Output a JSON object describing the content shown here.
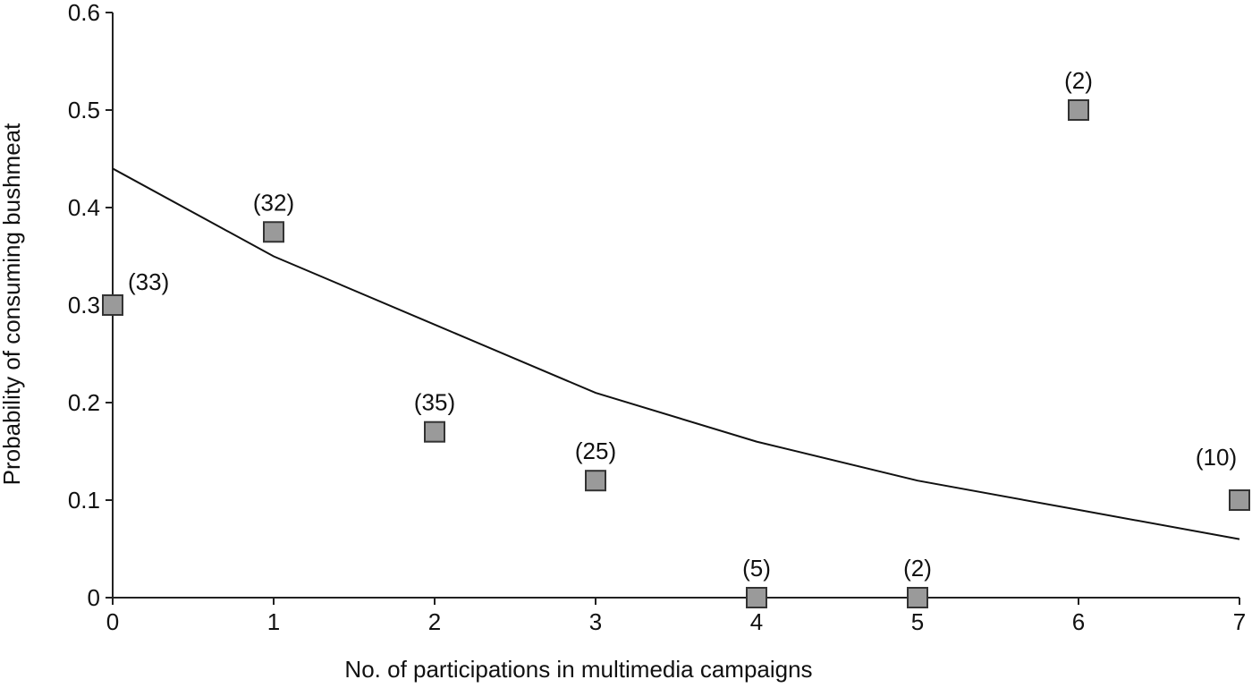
{
  "chart_data": {
    "type": "scatter",
    "title": "",
    "xlabel": "No. of participations in multimedia campaigns",
    "ylabel": "Probability of consuming bushmeat",
    "xlim": [
      0,
      7
    ],
    "ylim": [
      0,
      0.6
    ],
    "x_ticks": [
      "0",
      "1",
      "2",
      "3",
      "4",
      "5",
      "6",
      "7"
    ],
    "y_ticks": [
      "0",
      "0.1",
      "0.2",
      "0.3",
      "0.4",
      "0.5",
      "0.6"
    ],
    "grid": false,
    "legend": "none",
    "series": [
      {
        "type": "scatter",
        "marker": "square",
        "color": "#9a9a9a",
        "points": [
          {
            "x": 0,
            "y": 0.3,
            "label": "(33)"
          },
          {
            "x": 1,
            "y": 0.375,
            "label": "(32)"
          },
          {
            "x": 2,
            "y": 0.17,
            "label": "(35)"
          },
          {
            "x": 3,
            "y": 0.12,
            "label": "(25)"
          },
          {
            "x": 4,
            "y": 0.0,
            "label": "(5)"
          },
          {
            "x": 5,
            "y": 0.0,
            "label": "(2)"
          },
          {
            "x": 6,
            "y": 0.5,
            "label": "(2)"
          },
          {
            "x": 7,
            "y": 0.1,
            "label": "(10)"
          }
        ]
      },
      {
        "type": "line",
        "color": "#111111",
        "points": [
          {
            "x": 0,
            "y": 0.44
          },
          {
            "x": 1,
            "y": 0.35
          },
          {
            "x": 2,
            "y": 0.28
          },
          {
            "x": 3,
            "y": 0.21
          },
          {
            "x": 4,
            "y": 0.16
          },
          {
            "x": 5,
            "y": 0.12
          },
          {
            "x": 6,
            "y": 0.09
          },
          {
            "x": 7,
            "y": 0.06
          }
        ]
      }
    ]
  }
}
